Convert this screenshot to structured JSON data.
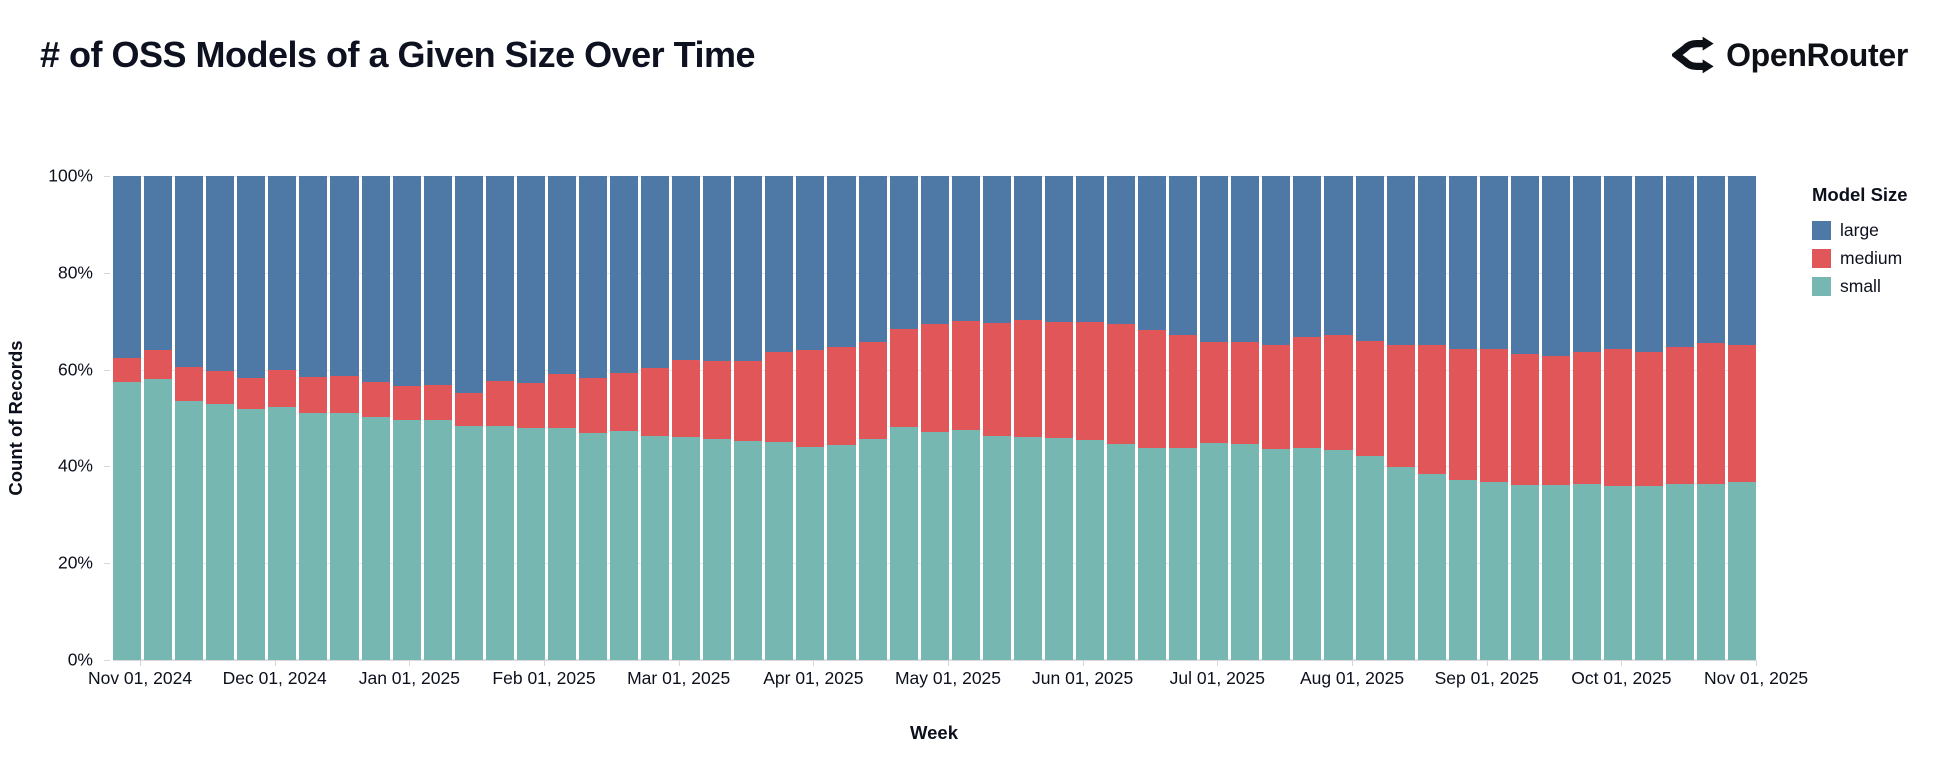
{
  "header": {
    "title": "# of OSS Models of a Given Size Over Time",
    "brand": "OpenRouter"
  },
  "chart_data": {
    "type": "bar",
    "variant": "stacked-100-percent-weekly",
    "title": "# of OSS Models of a Given Size Over Time",
    "xlabel": "Week",
    "ylabel": "Count of Records",
    "ylim": [
      0,
      100
    ],
    "grid": true,
    "y_tick_labels": [
      "0%",
      "20%",
      "40%",
      "60%",
      "80%",
      "100%"
    ],
    "x_tick_labels": [
      "Nov 01, 2024",
      "Dec 01, 2024",
      "Jan 01, 2025",
      "Feb 01, 2025",
      "Mar 01, 2025",
      "Apr 01, 2025",
      "May 01, 2025",
      "Jun 01, 2025",
      "Jul 01, 2025",
      "Aug 01, 2025",
      "Sep 01, 2025",
      "Oct 01, 2025",
      "Nov 01, 2025"
    ],
    "legend": {
      "title": "Model Size",
      "position": "right",
      "entries": [
        {
          "label": "large",
          "color": "#4e79a7"
        },
        {
          "label": "medium",
          "color": "#e15759"
        },
        {
          "label": "small",
          "color": "#76b7b2"
        }
      ]
    },
    "weeks": [
      "2024-11-01",
      "2024-11-08",
      "2024-11-15",
      "2024-11-22",
      "2024-11-29",
      "2024-12-06",
      "2024-12-13",
      "2024-12-20",
      "2024-12-27",
      "2025-01-03",
      "2025-01-10",
      "2025-01-17",
      "2025-01-24",
      "2025-01-31",
      "2025-02-07",
      "2025-02-14",
      "2025-02-21",
      "2025-02-28",
      "2025-03-07",
      "2025-03-14",
      "2025-03-21",
      "2025-03-28",
      "2025-04-04",
      "2025-04-11",
      "2025-04-18",
      "2025-04-25",
      "2025-05-02",
      "2025-05-09",
      "2025-05-16",
      "2025-05-23",
      "2025-05-30",
      "2025-06-06",
      "2025-06-13",
      "2025-06-20",
      "2025-06-27",
      "2025-07-04",
      "2025-07-11",
      "2025-07-18",
      "2025-07-25",
      "2025-08-01",
      "2025-08-08",
      "2025-08-15",
      "2025-08-22",
      "2025-08-29",
      "2025-09-05",
      "2025-09-12",
      "2025-09-19",
      "2025-09-26",
      "2025-10-03",
      "2025-10-10",
      "2025-10-17",
      "2025-10-24",
      "2025-10-31"
    ],
    "series": [
      {
        "name": "large",
        "color": "#4e79a7",
        "values": [
          37.6,
          35.9,
          39.5,
          40.2,
          41.8,
          40.0,
          41.6,
          41.4,
          42.6,
          43.3,
          43.1,
          44.8,
          42.4,
          42.7,
          41.0,
          41.7,
          40.6,
          39.7,
          38.1,
          38.3,
          38.3,
          36.3,
          35.9,
          35.4,
          34.2,
          31.6,
          30.6,
          29.9,
          30.4,
          29.7,
          30.1,
          30.2,
          30.6,
          31.9,
          32.9,
          34.2,
          34.3,
          35.0,
          33.3,
          32.8,
          34.0,
          35.0,
          35.0,
          35.7,
          35.7,
          36.8,
          37.2,
          36.4,
          35.7,
          36.4,
          35.4,
          34.5,
          34.9
        ]
      },
      {
        "name": "medium",
        "color": "#e15759",
        "values": [
          4.9,
          6.1,
          6.9,
          7.0,
          6.3,
          7.8,
          7.3,
          7.5,
          7.1,
          7.2,
          7.4,
          6.9,
          9.3,
          9.3,
          11.1,
          11.3,
          12.0,
          14.0,
          15.9,
          16.0,
          16.4,
          18.6,
          20.0,
          20.2,
          20.1,
          20.3,
          22.2,
          22.5,
          23.3,
          24.2,
          24.1,
          24.4,
          24.8,
          24.4,
          23.3,
          21.0,
          21.1,
          21.4,
          22.8,
          23.8,
          23.8,
          25.1,
          26.6,
          27.1,
          27.5,
          27.1,
          26.7,
          27.3,
          28.4,
          27.7,
          28.2,
          29.2,
          28.3
        ]
      },
      {
        "name": "small",
        "color": "#76b7b2",
        "values": [
          57.5,
          58.0,
          53.6,
          52.8,
          51.9,
          52.2,
          51.1,
          51.1,
          50.3,
          49.5,
          49.5,
          48.3,
          48.3,
          48.0,
          47.9,
          47.0,
          47.4,
          46.3,
          46.0,
          45.7,
          45.3,
          45.1,
          44.1,
          44.4,
          45.7,
          48.1,
          47.2,
          47.6,
          46.3,
          46.1,
          45.8,
          45.4,
          44.6,
          43.7,
          43.8,
          44.8,
          44.6,
          43.6,
          43.9,
          43.4,
          42.2,
          39.9,
          38.4,
          37.2,
          36.8,
          36.1,
          36.1,
          36.3,
          35.9,
          35.9,
          36.4,
          36.3,
          36.8
        ]
      }
    ]
  },
  "colors": {
    "text": "#0c101d",
    "grid": "#e4e4e9",
    "axis": "#d8d8dc"
  }
}
